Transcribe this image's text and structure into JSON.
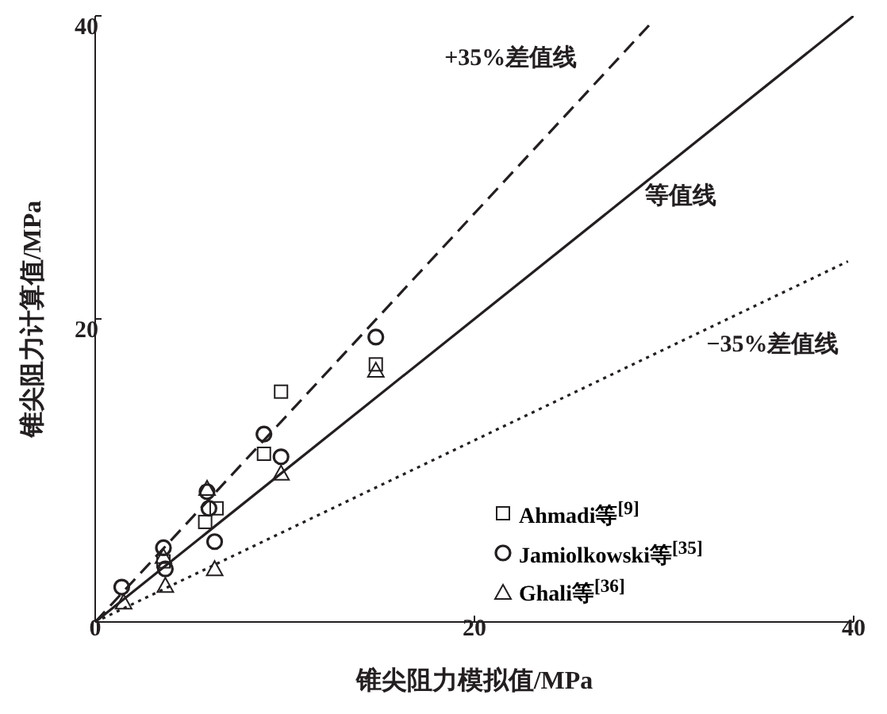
{
  "chart_data": {
    "type": "scatter",
    "xlabel": "锥尖阻力模拟值/MPa",
    "ylabel": "锥尖阻力计算值/MPa",
    "xlim": [
      0,
      40
    ],
    "ylim": [
      0,
      40
    ],
    "xticks": [
      0,
      20,
      40
    ],
    "yticks": [
      {
        "value": 0,
        "label": null
      },
      20,
      40
    ],
    "grid": false,
    "legend": "bottom right",
    "series": [
      {
        "name": "Ahmadi等$^{[9]}$",
        "color": "#231f20",
        "marker": "square",
        "x": [
          3.6,
          5.8,
          6.4,
          8.9,
          9.8,
          14.8
        ],
        "values": [
          4.0,
          6.6,
          7.5,
          11.1,
          15.2,
          17.0
        ]
      },
      {
        "name": "Jamiolkowski等$^{[35]}$",
        "color": "#231f20",
        "marker": "circle",
        "x": [
          1.4,
          3.6,
          3.7,
          5.9,
          6.0,
          6.3,
          8.9,
          9.8,
          14.8
        ],
        "values": [
          2.3,
          4.9,
          3.5,
          8.6,
          7.5,
          5.3,
          12.4,
          10.9,
          18.8
        ]
      },
      {
        "name": "Ghali等$^{[36]}$",
        "color": "#231f20",
        "marker": "triangle",
        "x": [
          1.5,
          3.6,
          3.7,
          5.9,
          6.3,
          9.8,
          14.8
        ],
        "values": [
          1.3,
          4.3,
          2.4,
          8.8,
          3.5,
          9.8,
          16.6
        ]
      },
      {
        "name": "+35%差值线",
        "type": "line",
        "color": "#231f20",
        "line_style": "dashed",
        "x": [
          0,
          29.3
        ],
        "values": [
          0,
          39.5
        ]
      },
      {
        "name": "等值线",
        "type": "line",
        "color": "#231f20",
        "line_style": "solid",
        "x": [
          0,
          40
        ],
        "values": [
          0,
          40
        ]
      },
      {
        "name": "−35%差值线",
        "type": "line",
        "color": "#231f20",
        "line_style": "dotted",
        "x": [
          0,
          39.7
        ],
        "values": [
          0,
          23.8
        ]
      }
    ]
  }
}
